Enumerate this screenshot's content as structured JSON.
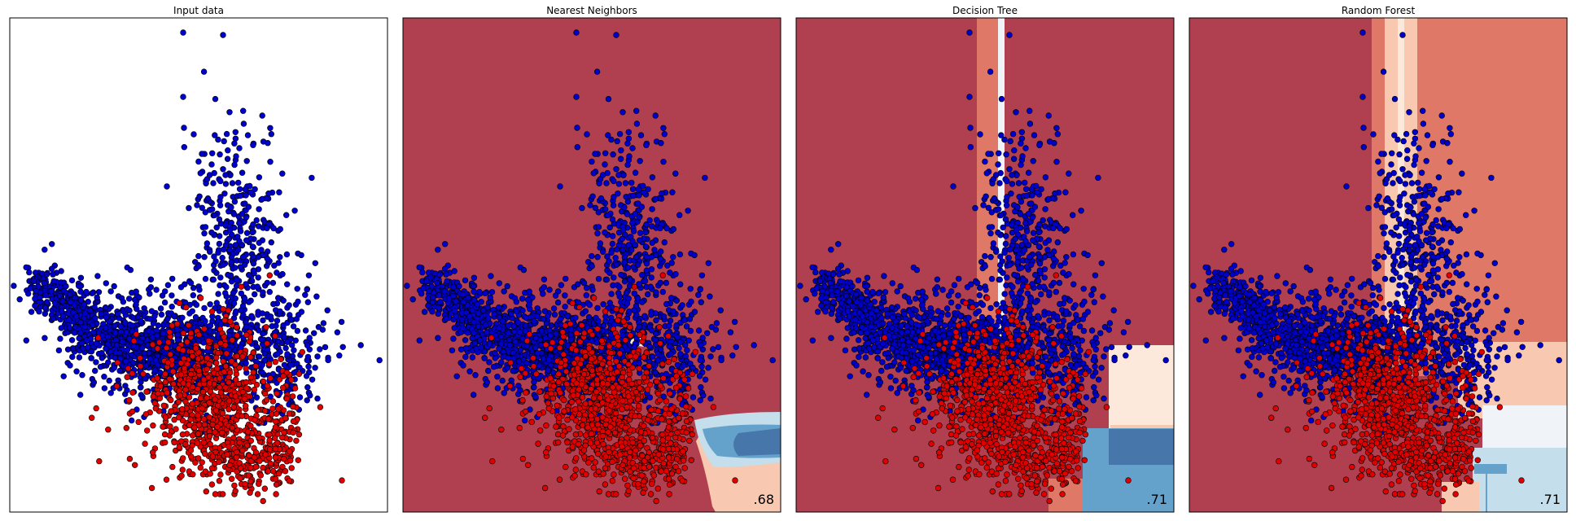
{
  "chart_data": [
    {
      "type": "scatter",
      "title": "Input data",
      "background": "none",
      "score": null
    },
    {
      "type": "scatter",
      "title": "Nearest Neighbors",
      "background": "knn",
      "score": ".68"
    },
    {
      "type": "scatter",
      "title": "Decision Tree",
      "background": "tree",
      "score": ".71"
    },
    {
      "type": "scatter",
      "title": "Random Forest",
      "background": "forest",
      "score": ".71"
    }
  ],
  "colors": {
    "class_blue": "#0000cc",
    "class_red": "#e00000",
    "deep_red": "#b04050",
    "mid_red": "#e07868",
    "light_salmon": "#f8c8b0",
    "pale": "#fde8dc",
    "near_white": "#f0f4f8",
    "light_blue": "#c4deec",
    "mid_blue": "#64a2cc",
    "dark_blue": "#4676aa",
    "edge": "#000000"
  }
}
